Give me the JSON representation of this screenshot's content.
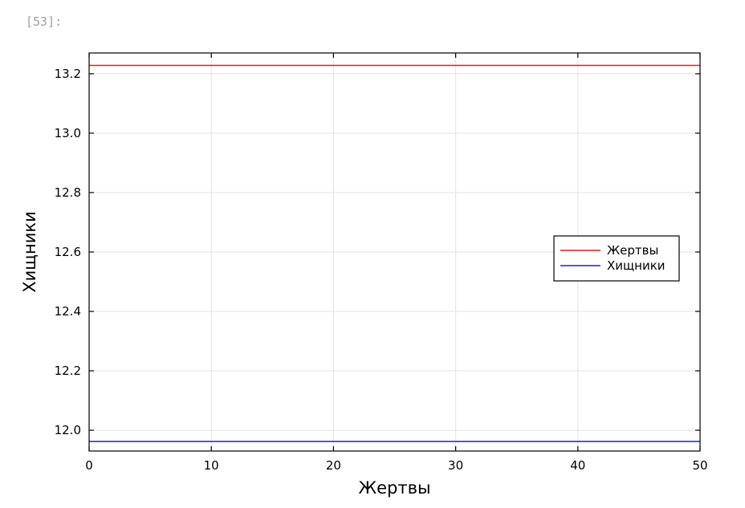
{
  "cell": {
    "prompt": "[53]:"
  },
  "chart_data": {
    "type": "line",
    "title": "",
    "xlabel": "Жертвы",
    "ylabel": "Хищники",
    "xlim": [
      0,
      50
    ],
    "ylim": [
      11.93,
      13.27
    ],
    "xticks": [
      0,
      10,
      20,
      30,
      40,
      50
    ],
    "yticks": [
      12.0,
      12.2,
      12.4,
      12.6,
      12.8,
      13.0,
      13.2
    ],
    "grid": true,
    "legend_position": "right",
    "series": [
      {
        "name": "Жертвы",
        "color": "#e41a1c",
        "x": [
          0,
          50
        ],
        "y": [
          13.228,
          13.228
        ]
      },
      {
        "name": "Хищники",
        "color": "#1f1fdd",
        "x": [
          0,
          50
        ],
        "y": [
          11.962,
          11.962
        ]
      }
    ]
  }
}
